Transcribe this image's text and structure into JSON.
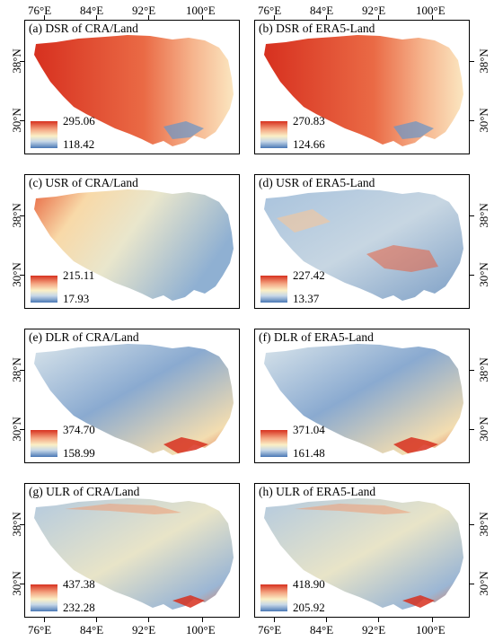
{
  "x_ticks": [
    "76°E",
    "84°E",
    "92°E",
    "100°E"
  ],
  "y_ticks": [
    "38°N",
    "30°N"
  ],
  "panels": [
    {
      "title": "(a) DSR of CRA/Land",
      "max": "295.06",
      "min": "118.42",
      "scheme": "high-west"
    },
    {
      "title": "(b) DSR of ERA5-Land",
      "max": "270.83",
      "min": "124.66",
      "scheme": "high-west"
    },
    {
      "title": "(c) USR of CRA/Land",
      "max": "215.11",
      "min": "17.93",
      "scheme": "usr-cra"
    },
    {
      "title": "(d) USR of ERA5-Land",
      "max": "227.42",
      "min": "13.37",
      "scheme": "usr-era"
    },
    {
      "title": "(e) DLR of CRA/Land",
      "max": "374.70",
      "min": "158.99",
      "scheme": "dlr"
    },
    {
      "title": "(f) DLR of ERA5-Land",
      "max": "371.04",
      "min": "161.48",
      "scheme": "dlr"
    },
    {
      "title": "(g) ULR of CRA/Land",
      "max": "437.38",
      "min": "232.28",
      "scheme": "ulr"
    },
    {
      "title": "(h) ULR of ERA5-Land",
      "max": "418.90",
      "min": "205.92",
      "scheme": "ulr"
    }
  ],
  "colors": {
    "high": "#d7301f",
    "mid": "#fbf0c6",
    "low": "#4a78b5"
  }
}
